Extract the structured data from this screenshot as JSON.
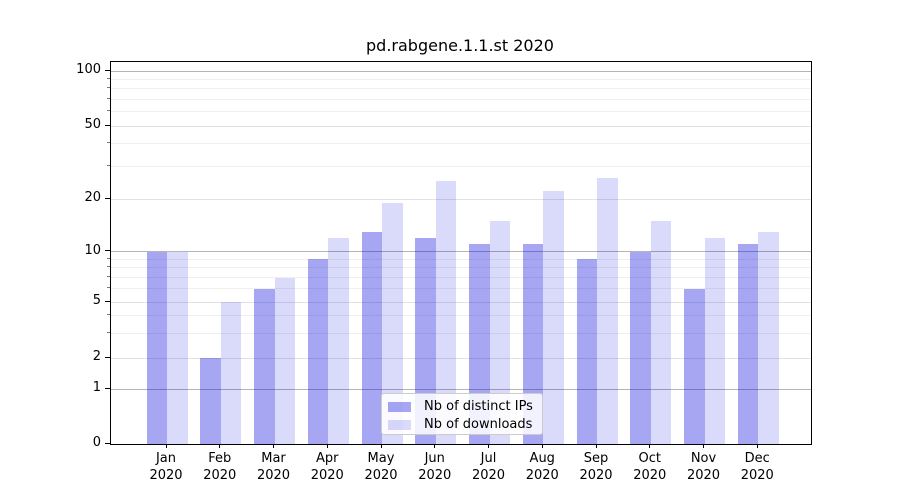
{
  "title": "pd.rabgene.1.1.st 2020",
  "chart_data": {
    "type": "bar",
    "title": "pd.rabgene.1.1.st 2020",
    "categories": [
      "Jan",
      "Feb",
      "Mar",
      "Apr",
      "May",
      "Jun",
      "Jul",
      "Aug",
      "Sep",
      "Oct",
      "Nov",
      "Dec"
    ],
    "category_year": "2020",
    "series": [
      {
        "name": "Nb of distinct IPs",
        "color": "#a6a6f3",
        "base_color": "#0000dd",
        "alpha": 0.35,
        "values": [
          10,
          2,
          6,
          9,
          13,
          12,
          11,
          11,
          9,
          10,
          6,
          11
        ]
      },
      {
        "name": "Nb of downloads",
        "color": "#dbdbfa",
        "base_color": "#0000dd",
        "alpha": 0.145,
        "values": [
          10,
          5,
          7,
          12,
          19,
          25,
          15,
          22,
          26,
          15,
          12,
          13
        ]
      }
    ],
    "xlabel": "",
    "ylabel": "",
    "yscale": "log-like (0,1,2,5,10,20,50,100)",
    "ylim": [
      0,
      100
    ],
    "yticks": [
      0,
      1,
      2,
      5,
      10,
      20,
      50,
      100
    ],
    "grid": true,
    "legend_position": "lower center"
  }
}
